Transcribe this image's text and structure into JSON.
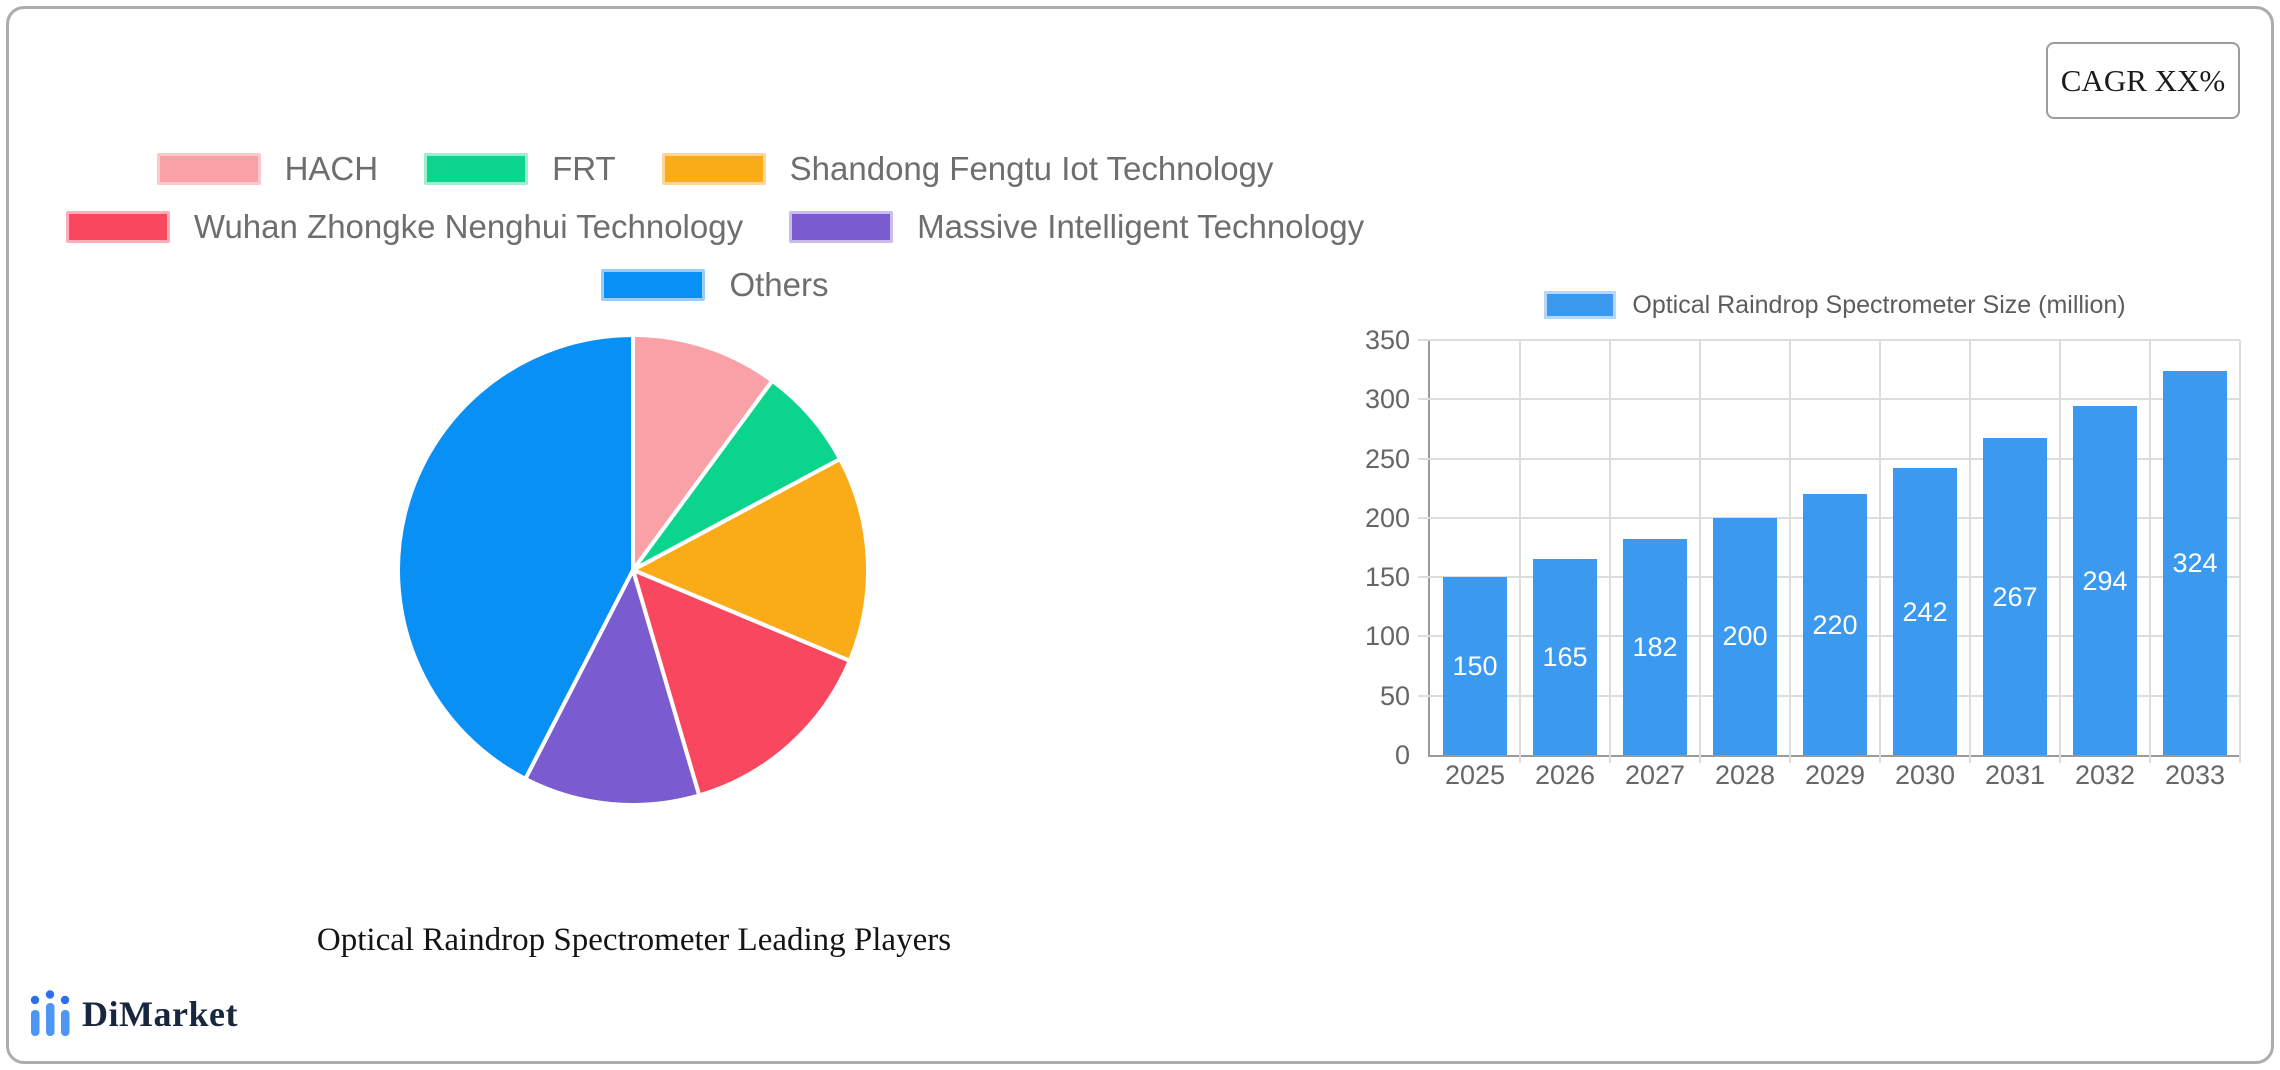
{
  "cagr_box": {
    "label": "CAGR XX%"
  },
  "logo": {
    "text": "DiMarket",
    "icon": "bar-chart-logo-icon",
    "bar_color": "#4d96f3",
    "dot_color": "#2c6fe8",
    "text_color": "#18273e"
  },
  "colors": {
    "grid": "#dddddd",
    "axis": "#9a9a9a",
    "tick_text": "#666666",
    "legend_text": "#6e6e6e",
    "frame_border": "#acacac"
  },
  "chart_data": [
    {
      "type": "pie",
      "title": "Optical Raindrop Spectrometer Leading Players",
      "legend_position": "top",
      "start_angle_deg": 0,
      "slices": [
        {
          "label": "HACH",
          "value": 10,
          "color": "#f9a1a7",
          "border_color": "#fbc8cb"
        },
        {
          "label": "FRT",
          "value": 7,
          "color": "#0bd48d",
          "border_color": "#9deecf"
        },
        {
          "label": "Shandong Fengtu Iot Technology",
          "value": 14,
          "color": "#f9ab18",
          "border_color": "#fbd699"
        },
        {
          "label": "Wuhan Zhongke Nenghui Technology",
          "value": 14,
          "color": "#fa4760",
          "border_color": "#fbaeba"
        },
        {
          "label": "Massive Intelligent Technology",
          "value": 12,
          "color": "#7a5cd0",
          "border_color": "#c9bcea"
        },
        {
          "label": "Others",
          "value": 42,
          "color": "#0890f5",
          "border_color": "#9ccbf7"
        }
      ]
    },
    {
      "type": "bar",
      "legend": "Optical Raindrop Spectrometer Size (million)",
      "categories": [
        "2025",
        "2026",
        "2027",
        "2028",
        "2029",
        "2030",
        "2031",
        "2032",
        "2033"
      ],
      "values": [
        150,
        165,
        182,
        200,
        220,
        242,
        267,
        294,
        324
      ],
      "bar_color": "#3b99ef",
      "bar_border_color": "#b5d7f8",
      "ylim": [
        0,
        350
      ],
      "ytick_step": 50,
      "yticks": [
        0,
        50,
        100,
        150,
        200,
        250,
        300,
        350
      ],
      "grid": true,
      "value_labels": "inside-center-white",
      "legend_position": "top"
    }
  ]
}
